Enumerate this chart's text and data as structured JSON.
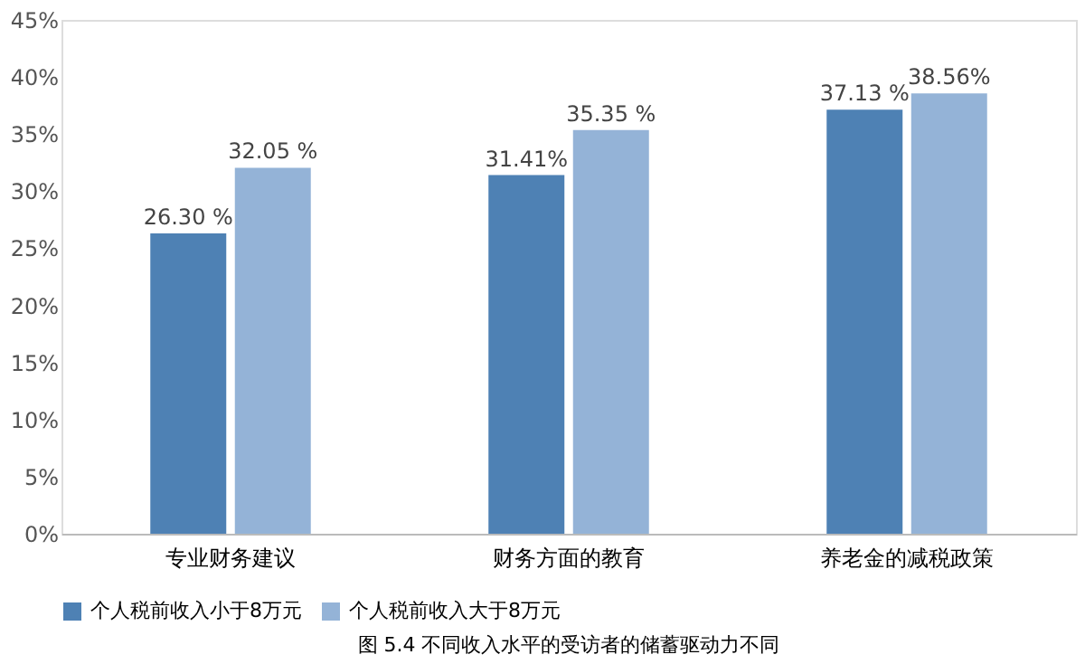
{
  "chart_data": {
    "type": "bar",
    "categories": [
      "专业财务建议",
      "财务方面的教育",
      "养老金的减税政策"
    ],
    "series": [
      {
        "name": "个人税前收入小于8万元",
        "color": "#4e81b4",
        "values": [
          26.3,
          31.41,
          37.13
        ],
        "value_labels": [
          "26.30 %",
          "31.41%",
          "37.13 %"
        ]
      },
      {
        "name": "个人税前收入大于8万元",
        "color": "#94b3d7",
        "values": [
          32.05,
          35.35,
          38.56
        ],
        "value_labels": [
          "32.05 %",
          "35.35 %",
          "38.56%"
        ]
      }
    ],
    "ylim": [
      0,
      45
    ],
    "yticks": [
      {
        "value": 0,
        "label": "0%"
      },
      {
        "value": 5,
        "label": "5%"
      },
      {
        "value": 10,
        "label": "10%"
      },
      {
        "value": 15,
        "label": "15%"
      },
      {
        "value": 20,
        "label": "20%"
      },
      {
        "value": 25,
        "label": "25%"
      },
      {
        "value": 30,
        "label": "30%"
      },
      {
        "value": 35,
        "label": "35%"
      },
      {
        "value": 40,
        "label": "40%"
      },
      {
        "value": 45,
        "label": "45%"
      }
    ],
    "grid": false,
    "legend": "bottom",
    "annotations": [
      "图 5.4 不同收入水平的受访者的储蓄驱动力不同"
    ]
  }
}
